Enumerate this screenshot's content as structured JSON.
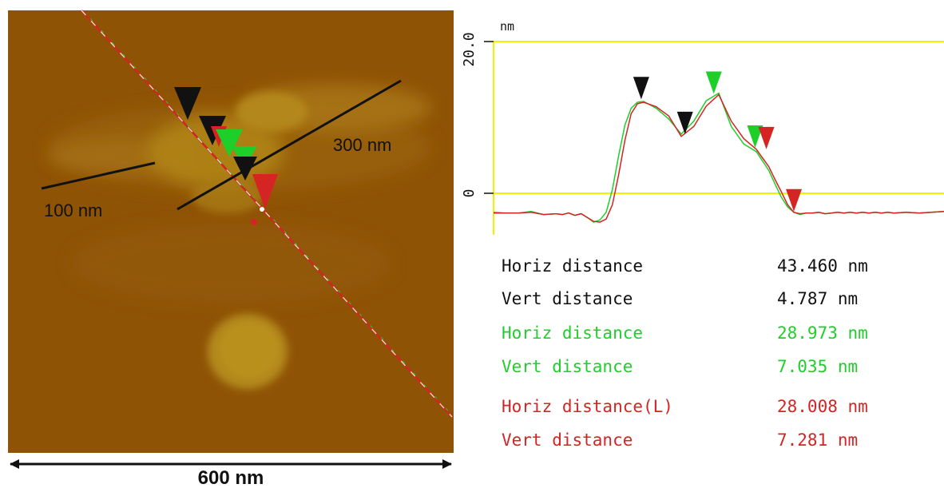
{
  "image": {
    "scale_bar": "600 nm",
    "annotations": [
      "100 nm",
      "300 nm"
    ]
  },
  "colors": {
    "black": "#111111",
    "green": "#1ecf2a",
    "red": "#d42424",
    "yellow_grid": "#f2f200",
    "afm_background": "#8f5306"
  },
  "chart_data": {
    "type": "line",
    "y_unit": "nm",
    "y_ticks": [
      "20.0",
      "0"
    ],
    "ylim": [
      -4,
      20
    ],
    "grid": true,
    "series": [
      {
        "color": "green",
        "x": [
          0,
          10,
          20,
          30,
          40,
          50,
          55,
          60,
          65,
          70,
          75,
          80,
          85,
          90,
          95,
          100,
          105,
          110,
          115,
          120,
          130,
          140,
          150,
          160,
          170,
          180,
          190,
          200,
          210,
          220,
          225,
          230,
          235,
          240,
          245,
          250,
          255,
          260,
          265,
          270,
          275,
          280,
          285,
          290,
          295,
          300,
          305,
          310,
          315,
          320,
          330,
          340,
          350,
          360
        ],
        "y": [
          -2.5,
          -2.6,
          -2.6,
          -2.4,
          -2.8,
          -2.7,
          -2.8,
          -2.6,
          -2.9,
          -2.7,
          -3.2,
          -3.8,
          -3.5,
          -2.5,
          0.5,
          5.0,
          9.0,
          11.2,
          12.0,
          12.1,
          11.2,
          9.8,
          7.8,
          9.5,
          12.2,
          13.2,
          8.8,
          6.5,
          5.5,
          3.0,
          1.2,
          -0.5,
          -1.8,
          -2.5,
          -2.8,
          -2.6,
          -2.6,
          -2.5,
          -2.7,
          -2.6,
          -2.5,
          -2.6,
          -2.5,
          -2.6,
          -2.5,
          -2.6,
          -2.5,
          -2.6,
          -2.5,
          -2.6,
          -2.5,
          -2.6,
          -2.5,
          -2.4
        ]
      },
      {
        "color": "red",
        "x": [
          0,
          10,
          20,
          30,
          40,
          50,
          55,
          60,
          65,
          70,
          75,
          80,
          85,
          90,
          95,
          100,
          105,
          110,
          115,
          120,
          130,
          140,
          150,
          160,
          170,
          180,
          190,
          200,
          210,
          220,
          225,
          230,
          235,
          240,
          245,
          250,
          255,
          260,
          265,
          270,
          275,
          280,
          285,
          290,
          295,
          300,
          305,
          310,
          315,
          320,
          330,
          340,
          350,
          360
        ],
        "y": [
          -2.6,
          -2.6,
          -2.6,
          -2.5,
          -2.8,
          -2.7,
          -2.8,
          -2.6,
          -2.9,
          -2.7,
          -3.2,
          -3.7,
          -3.8,
          -3.4,
          -1.5,
          2.5,
          7.0,
          10.5,
          11.8,
          12.0,
          11.4,
          10.2,
          7.5,
          8.8,
          11.5,
          13.0,
          9.5,
          7.2,
          5.8,
          3.5,
          1.8,
          0.2,
          -1.5,
          -2.5,
          -2.7,
          -2.6,
          -2.6,
          -2.5,
          -2.7,
          -2.6,
          -2.5,
          -2.6,
          -2.5,
          -2.6,
          -2.5,
          -2.6,
          -2.5,
          -2.6,
          -2.5,
          -2.6,
          -2.5,
          -2.6,
          -2.5,
          -2.4
        ]
      }
    ],
    "markers": [
      {
        "color": "black",
        "x": 118,
        "y": 12.4
      },
      {
        "color": "black",
        "x": 153,
        "y": 7.8
      },
      {
        "color": "green",
        "x": 176,
        "y": 13.1
      },
      {
        "color": "green",
        "x": 209,
        "y": 6.0
      },
      {
        "color": "red",
        "x": 218,
        "y": 5.8
      },
      {
        "color": "red",
        "x": 240,
        "y": -2.4
      }
    ]
  },
  "measurements": [
    {
      "label": "Horiz distance",
      "value": "43.460 nm",
      "color": "black"
    },
    {
      "label": "Vert distance",
      "value": "4.787 nm",
      "color": "black"
    },
    {
      "label": "Horiz distance",
      "value": "28.973 nm",
      "color": "green"
    },
    {
      "label": "Vert distance",
      "value": "7.035 nm",
      "color": "green"
    },
    {
      "label": "Horiz distance(L)",
      "value": "28.008 nm",
      "color": "red"
    },
    {
      "label": "Vert distance",
      "value": "7.281 nm",
      "color": "red"
    }
  ]
}
